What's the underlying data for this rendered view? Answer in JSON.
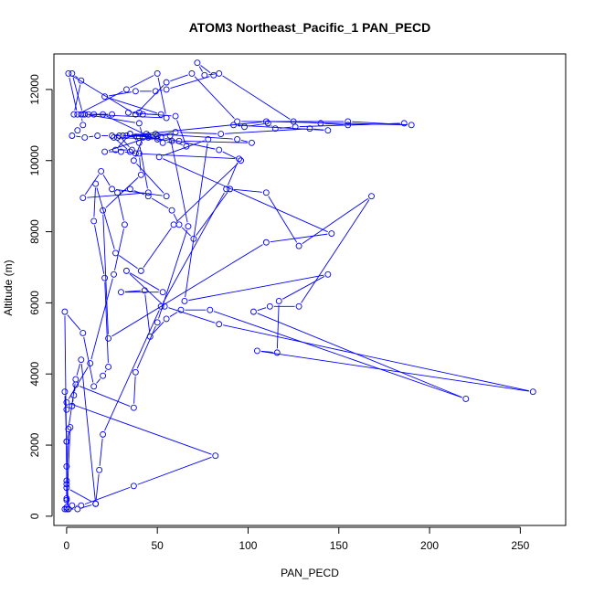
{
  "chart_data": {
    "type": "line",
    "title": "ATOM3 Northeast_Pacific_1 PAN_PECD",
    "xlabel": "PAN_PECD",
    "ylabel": "Altitude (m)",
    "xlim": [
      -7,
      275
    ],
    "ylim": [
      -260,
      13000
    ],
    "xticks": [
      0,
      50,
      100,
      150,
      200,
      250
    ],
    "yticks": [
      0,
      2000,
      4000,
      6000,
      8000,
      10000,
      12000
    ],
    "grid": false,
    "legend": "none",
    "series_color": "#0000ff",
    "series": [
      {
        "values": [
          [
            -1,
            200
          ],
          [
            1,
            200
          ],
          [
            0,
            500
          ],
          [
            0,
            1000
          ],
          [
            0,
            2100
          ],
          [
            -1,
            3500
          ],
          [
            0,
            3000
          ],
          [
            3,
            3100
          ],
          [
            4,
            3400
          ],
          [
            5,
            3700
          ],
          [
            37,
            3050
          ],
          [
            38,
            4050
          ],
          [
            50,
            5450
          ],
          [
            67,
            8150
          ],
          [
            57,
            10700
          ],
          [
            35,
            10750
          ],
          [
            27,
            10300
          ],
          [
            36,
            10300
          ],
          [
            29,
            10700
          ],
          [
            45,
            10700
          ],
          [
            49,
            10750
          ],
          [
            94,
            10600
          ],
          [
            102,
            10500
          ],
          [
            62,
            10550
          ],
          [
            53,
            10500
          ],
          [
            20,
            11300
          ],
          [
            12,
            11300
          ],
          [
            55,
            11200
          ],
          [
            50,
            12450
          ],
          [
            33,
            12000
          ],
          [
            6,
            11300
          ],
          [
            1,
            12450
          ],
          [
            38,
            11300
          ],
          [
            55,
            12200
          ],
          [
            69,
            12450
          ],
          [
            94,
            11100
          ],
          [
            155,
            11100
          ],
          [
            190,
            11000
          ],
          [
            110,
            11100
          ],
          [
            33,
            10700
          ],
          [
            52,
            10650
          ],
          [
            84,
            10300
          ],
          [
            96,
            10000
          ],
          [
            59,
            8200
          ],
          [
            41,
            6900
          ],
          [
            27,
            7400
          ],
          [
            16,
            9350
          ],
          [
            15,
            8300
          ],
          [
            21,
            6700
          ],
          [
            23,
            4200
          ],
          [
            20,
            3950
          ],
          [
            15,
            3650
          ],
          [
            9,
            5150
          ],
          [
            -1,
            5750
          ],
          [
            0,
            1400
          ],
          [
            1,
            200
          ],
          [
            3,
            300
          ],
          [
            8,
            300
          ],
          [
            37,
            850
          ],
          [
            82,
            1700
          ],
          [
            0,
            3200
          ],
          [
            13,
            4300
          ],
          [
            26,
            6800
          ],
          [
            32,
            8200
          ],
          [
            28,
            9100
          ],
          [
            35,
            9200
          ],
          [
            45,
            9000
          ],
          [
            58,
            8600
          ],
          [
            62,
            8200
          ],
          [
            70,
            7800
          ],
          [
            90,
            9200
          ],
          [
            110,
            9100
          ],
          [
            128,
            7600
          ],
          [
            168,
            9000
          ],
          [
            128,
            5900
          ],
          [
            112,
            5900
          ],
          [
            103,
            5750
          ],
          [
            220,
            3300
          ],
          [
            79,
            5800
          ],
          [
            63,
            5800
          ],
          [
            55,
            5550
          ],
          [
            46,
            5050
          ],
          [
            43,
            6350
          ],
          [
            30,
            6300
          ],
          [
            53,
            6300
          ],
          [
            33,
            6900
          ],
          [
            54,
            5900
          ],
          [
            84,
            5400
          ],
          [
            257,
            3500
          ],
          [
            105,
            4650
          ],
          [
            116,
            4600
          ],
          [
            117,
            6050
          ],
          [
            144,
            6800
          ],
          [
            65,
            6050
          ],
          [
            78,
            10600
          ],
          [
            51,
            10100
          ],
          [
            146,
            7950
          ],
          [
            110,
            7700
          ],
          [
            23,
            5000
          ],
          [
            20,
            8600
          ],
          [
            41,
            9600
          ],
          [
            40,
            10200
          ],
          [
            30,
            10250
          ],
          [
            21,
            10250
          ],
          [
            45,
            10650
          ],
          [
            58,
            10550
          ],
          [
            66,
            10400
          ],
          [
            60,
            11250
          ],
          [
            34,
            11350
          ],
          [
            40,
            11350
          ],
          [
            42,
            11300
          ],
          [
            52,
            11300
          ],
          [
            21,
            11800
          ],
          [
            38,
            11950
          ],
          [
            49,
            11950
          ],
          [
            55,
            12000
          ],
          [
            81,
            12400
          ],
          [
            72,
            12750
          ],
          [
            76,
            12400
          ],
          [
            84,
            12450
          ],
          [
            125,
            11100
          ],
          [
            140,
            11050
          ],
          [
            155,
            11000
          ],
          [
            186,
            11050
          ],
          [
            126,
            10950
          ],
          [
            115,
            10900
          ],
          [
            111,
            11050
          ],
          [
            98,
            10950
          ],
          [
            92,
            11000
          ],
          [
            144,
            10850
          ],
          [
            134,
            10900
          ],
          [
            85,
            10750
          ],
          [
            60,
            10800
          ],
          [
            50,
            10700
          ],
          [
            44,
            10750
          ],
          [
            40,
            10650
          ],
          [
            31,
            10700
          ],
          [
            25,
            10700
          ],
          [
            17,
            10700
          ],
          [
            10,
            10650
          ],
          [
            3,
            10700
          ],
          [
            6,
            10850
          ],
          [
            9,
            11000
          ],
          [
            8,
            11300
          ],
          [
            4,
            11300
          ],
          [
            8,
            12250
          ],
          [
            3,
            12450
          ],
          [
            9,
            11300
          ],
          [
            25,
            11300
          ],
          [
            15,
            11300
          ],
          [
            10,
            11300
          ],
          [
            40,
            11050
          ],
          [
            42,
            10650
          ],
          [
            37,
            10000
          ],
          [
            55,
            9000
          ],
          [
            25,
            9200
          ],
          [
            19,
            9700
          ],
          [
            9,
            8950
          ],
          [
            45,
            9100
          ],
          [
            40,
            10500
          ],
          [
            35,
            10750
          ],
          [
            50,
            10600
          ],
          [
            28,
            10650
          ],
          [
            26,
            10650
          ],
          [
            35,
            10250
          ],
          [
            38,
            10200
          ],
          [
            95,
            10050
          ],
          [
            88,
            9200
          ],
          [
            52,
            5900
          ],
          [
            20,
            2300
          ],
          [
            18,
            1300
          ],
          [
            16,
            350
          ],
          [
            6,
            200
          ],
          [
            0,
            200
          ],
          [
            0,
            450
          ],
          [
            0,
            900
          ],
          [
            1,
            2450
          ],
          [
            5,
            3850
          ],
          [
            8,
            4400
          ],
          [
            16,
            350
          ],
          [
            0,
            800
          ],
          [
            0,
            2100
          ],
          [
            2,
            2500
          ],
          [
            0,
            250
          ]
        ]
      }
    ]
  }
}
